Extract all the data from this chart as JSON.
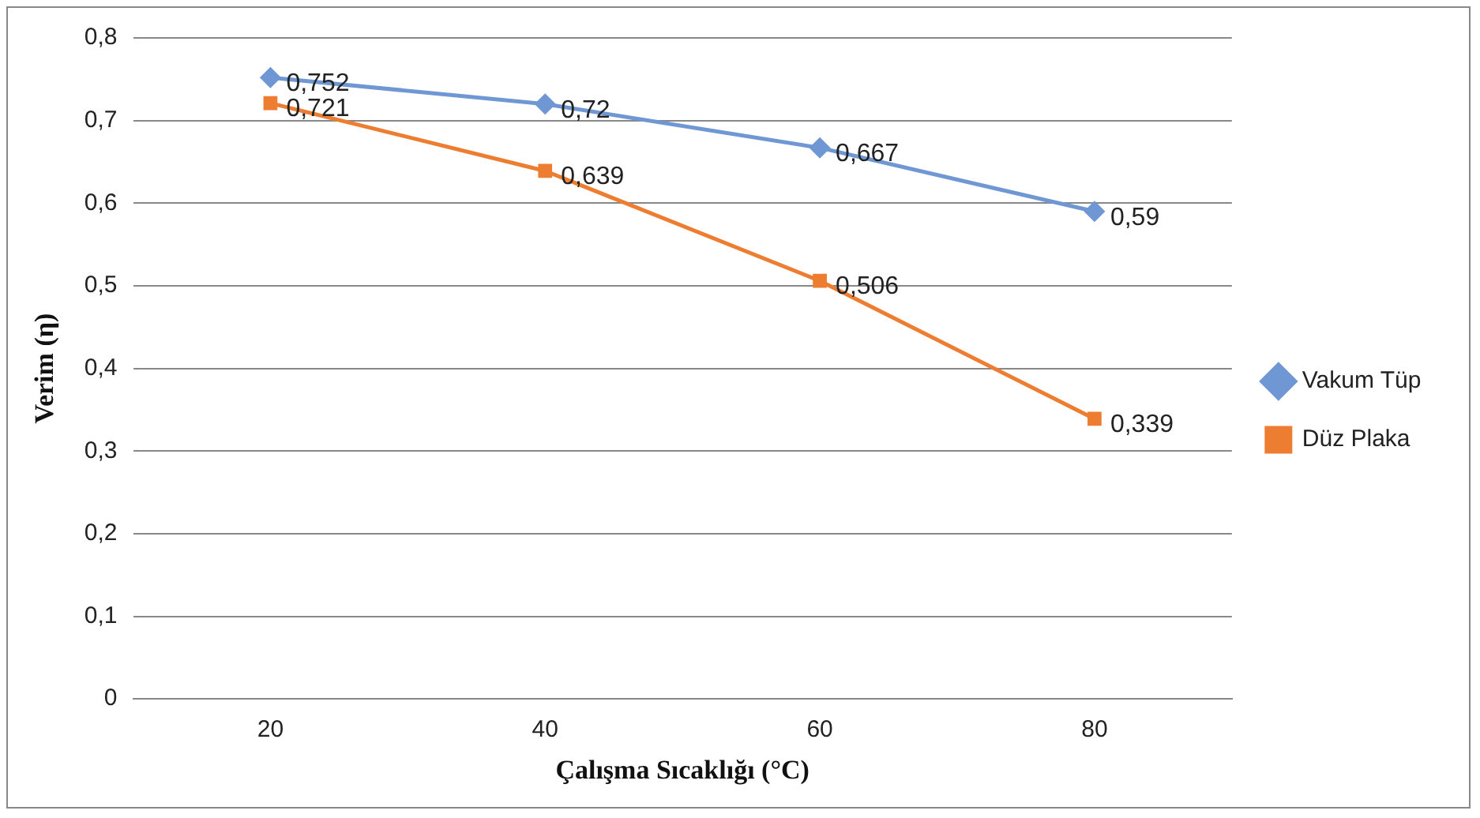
{
  "chart_data": {
    "type": "line",
    "xlabel": "Çalışma Sıcaklığı (°C)",
    "ylabel": "Verim (η)",
    "categories": [
      "20",
      "40",
      "60",
      "80"
    ],
    "series": [
      {
        "name": "Vakum Tüp",
        "color": "#6f97d4",
        "marker": "diamond",
        "values": [
          0.752,
          0.72,
          0.667,
          0.59
        ],
        "value_labels": [
          "0,752",
          "0,72",
          "0,667",
          "0,59"
        ]
      },
      {
        "name": "Düz Plaka",
        "color": "#ed7d31",
        "marker": "square",
        "values": [
          0.721,
          0.639,
          0.506,
          0.339
        ],
        "value_labels": [
          "0,721",
          "0,639",
          "0,506",
          "0,339"
        ]
      }
    ],
    "ylim": [
      0,
      0.8
    ],
    "yticks": [
      {
        "value": 0,
        "label": "0"
      },
      {
        "value": 0.1,
        "label": "0,1"
      },
      {
        "value": 0.2,
        "label": "0,2"
      },
      {
        "value": 0.3,
        "label": "0,3"
      },
      {
        "value": 0.4,
        "label": "0,4"
      },
      {
        "value": 0.5,
        "label": "0,5"
      },
      {
        "value": 0.6,
        "label": "0,6"
      },
      {
        "value": 0.7,
        "label": "0,7"
      },
      {
        "value": 0.8,
        "label": "0,8"
      }
    ],
    "grid": "y",
    "legend": "right",
    "line_style": "solid"
  }
}
